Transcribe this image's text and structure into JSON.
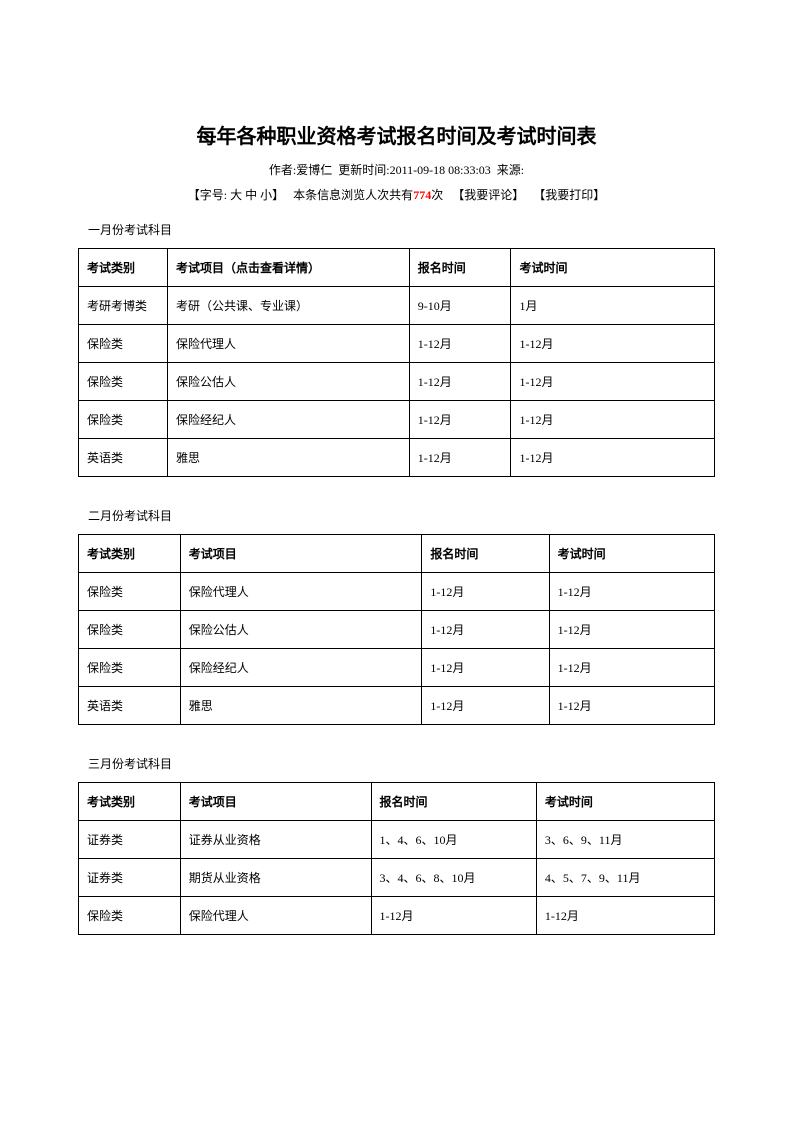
{
  "title": "每年各种职业资格考试报名时间及考试时间表",
  "meta": {
    "author_label": "作者:",
    "author": "爱博仁",
    "update_label": "更新时间:",
    "update_time": "2011-09-18 08:33:03",
    "source_label": "来源:"
  },
  "controls": {
    "font_label": "【字号:",
    "large": "大",
    "medium": "中",
    "small": "小",
    "font_close": "】",
    "view_prefix": "本条信息浏览人次共有",
    "view_count": "774",
    "view_suffix": "次",
    "comment": "【我要评论】",
    "print": "【我要打印】"
  },
  "sections": [
    {
      "heading": "一月份考试科目",
      "tclass": "t1",
      "headers": [
        "考试类别",
        "考试项目（点击查看详情）",
        "报名时间",
        "考试时间"
      ],
      "rows": [
        [
          "考研考博类",
          "考研（公共课、专业课）",
          "9-10月",
          "1月"
        ],
        [
          "保险类",
          "保险代理人",
          "1-12月",
          "1-12月"
        ],
        [
          "保险类",
          "保险公估人",
          "1-12月",
          "1-12月"
        ],
        [
          "保险类",
          "保险经纪人",
          "1-12月",
          "1-12月"
        ],
        [
          "英语类",
          "雅思",
          "1-12月",
          "1-12月"
        ]
      ]
    },
    {
      "heading": "二月份考试科目",
      "tclass": "t2",
      "headers": [
        "考试类别",
        "考试项目",
        "报名时间",
        "考试时间"
      ],
      "rows": [
        [
          "保险类",
          "保险代理人",
          "1-12月",
          "1-12月"
        ],
        [
          "保险类",
          "保险公估人",
          "1-12月",
          "1-12月"
        ],
        [
          "保险类",
          "保险经纪人",
          "1-12月",
          "1-12月"
        ],
        [
          "英语类",
          "雅思",
          "1-12月",
          "1-12月"
        ]
      ]
    },
    {
      "heading": "三月份考试科目",
      "tclass": "t3",
      "headers": [
        "考试类别",
        "考试项目",
        "报名时间",
        "考试时间"
      ],
      "rows": [
        [
          "证券类",
          "证券从业资格",
          "1、4、6、10月",
          "3、6、9、11月"
        ],
        [
          "证券类",
          "期货从业资格",
          "3、4、6、8、10月",
          "4、5、7、9、11月"
        ],
        [
          "保险类",
          "保险代理人",
          "1-12月",
          "1-12月"
        ]
      ]
    }
  ]
}
